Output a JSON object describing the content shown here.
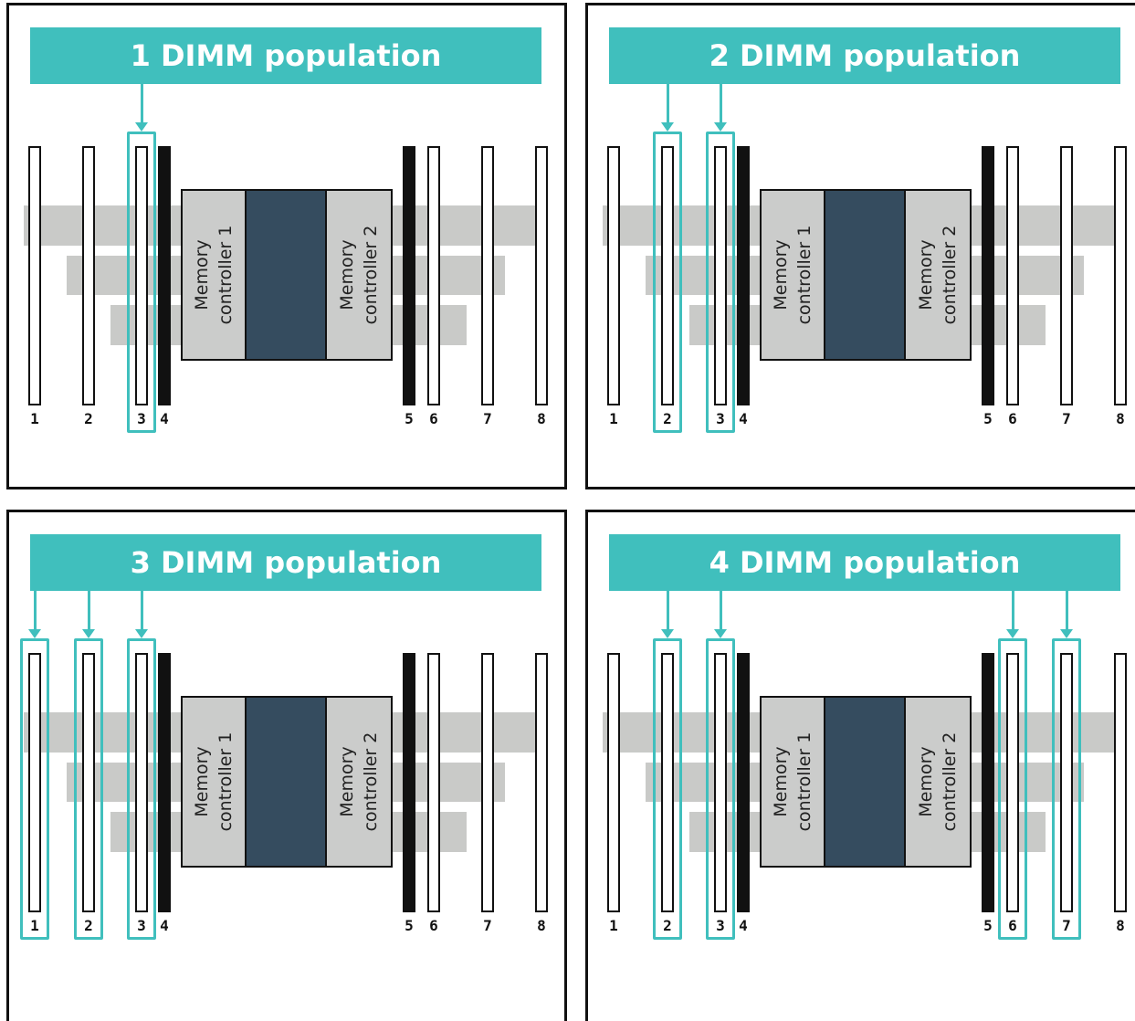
{
  "accent_color": "#40bfbd",
  "cpu_color": "#354c5f",
  "panels": [
    {
      "title": "1 DIMM population",
      "populated_slots": [
        "3"
      ]
    },
    {
      "title": "2 DIMM population",
      "populated_slots": [
        "2",
        "3"
      ]
    },
    {
      "title": "3 DIMM population",
      "populated_slots": [
        "1",
        "2",
        "3"
      ]
    },
    {
      "title": "4 DIMM population",
      "populated_slots": [
        "2",
        "3",
        "6",
        "7"
      ]
    }
  ],
  "slot_labels": [
    "1",
    "2",
    "3",
    "4",
    "5",
    "6",
    "7",
    "8"
  ],
  "dark_slots": [
    "4",
    "5"
  ],
  "memory_controller_1": "Memory controller 1",
  "memory_controller_2": "Memory controller 2",
  "mc1_lines": [
    "Memory",
    "controller 1"
  ],
  "mc2_lines": [
    "Memory",
    "controller 2"
  ]
}
